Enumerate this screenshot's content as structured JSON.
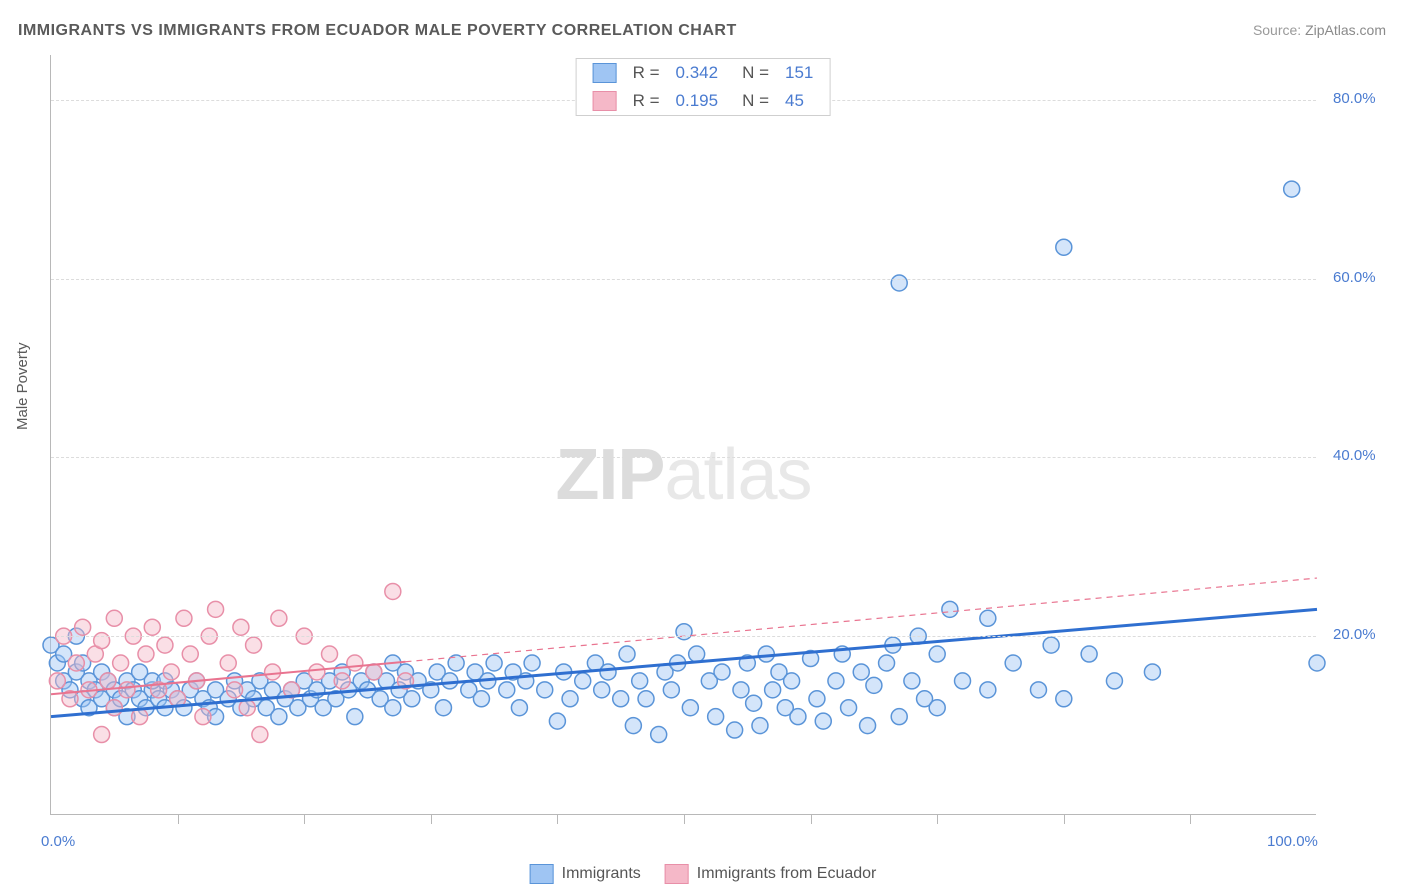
{
  "title": "IMMIGRANTS VS IMMIGRANTS FROM ECUADOR MALE POVERTY CORRELATION CHART",
  "source_label": "Source:",
  "source_value": "ZipAtlas.com",
  "ylabel": "Male Poverty",
  "watermark_zip": "ZIP",
  "watermark_atlas": "atlas",
  "chart": {
    "type": "scatter",
    "xlim": [
      0,
      100
    ],
    "ylim": [
      0,
      85
    ],
    "x_ticks": [
      0,
      100
    ],
    "x_tick_labels": [
      "0.0%",
      "100.0%"
    ],
    "x_minor_ticks": [
      10,
      20,
      30,
      40,
      50,
      60,
      70,
      80,
      90
    ],
    "y_ticks": [
      20,
      40,
      60,
      80
    ],
    "y_tick_labels": [
      "20.0%",
      "40.0%",
      "60.0%",
      "80.0%"
    ],
    "background_color": "#ffffff",
    "grid_color": "#dcdcdc",
    "axis_color": "#b8b8b8",
    "tick_label_color": "#4a7bd0",
    "marker_radius": 8,
    "marker_stroke_width": 1.5,
    "marker_fill_opacity": 0.45,
    "series": [
      {
        "name": "Immigrants",
        "legend_label": "Immigrants",
        "color_fill": "#9fc5f3",
        "color_stroke": "#5a94d8",
        "r_value": "0.342",
        "n_value": "151",
        "trend": {
          "x1": 0,
          "y1": 11,
          "x2": 100,
          "y2": 23,
          "solid_until_x": 100,
          "color": "#2f6fd0",
          "width": 3
        },
        "points": [
          [
            0,
            19
          ],
          [
            0.5,
            17
          ],
          [
            1,
            15
          ],
          [
            1,
            18
          ],
          [
            1.5,
            14
          ],
          [
            2,
            16
          ],
          [
            2,
            20
          ],
          [
            2.5,
            13
          ],
          [
            2.5,
            17
          ],
          [
            3,
            15
          ],
          [
            3,
            12
          ],
          [
            3.5,
            14
          ],
          [
            4,
            16
          ],
          [
            4,
            13
          ],
          [
            4.5,
            15
          ],
          [
            5,
            14
          ],
          [
            5,
            12
          ],
          [
            5.5,
            13
          ],
          [
            6,
            15
          ],
          [
            6,
            11
          ],
          [
            6.5,
            14
          ],
          [
            7,
            13
          ],
          [
            7,
            16
          ],
          [
            7.5,
            12
          ],
          [
            8,
            14
          ],
          [
            8,
            15
          ],
          [
            8.5,
            13
          ],
          [
            9,
            12
          ],
          [
            9,
            15
          ],
          [
            9.5,
            14
          ],
          [
            10,
            13
          ],
          [
            10.5,
            12
          ],
          [
            11,
            14
          ],
          [
            11.5,
            15
          ],
          [
            12,
            13
          ],
          [
            12.5,
            12
          ],
          [
            13,
            14
          ],
          [
            13,
            11
          ],
          [
            14,
            13
          ],
          [
            14.5,
            15
          ],
          [
            15,
            12
          ],
          [
            15.5,
            14
          ],
          [
            16,
            13
          ],
          [
            16.5,
            15
          ],
          [
            17,
            12
          ],
          [
            17.5,
            14
          ],
          [
            18,
            11
          ],
          [
            18.5,
            13
          ],
          [
            19,
            14
          ],
          [
            19.5,
            12
          ],
          [
            20,
            15
          ],
          [
            20.5,
            13
          ],
          [
            21,
            14
          ],
          [
            21.5,
            12
          ],
          [
            22,
            15
          ],
          [
            22.5,
            13
          ],
          [
            23,
            16
          ],
          [
            23.5,
            14
          ],
          [
            24,
            11
          ],
          [
            24.5,
            15
          ],
          [
            25,
            14
          ],
          [
            25.5,
            16
          ],
          [
            26,
            13
          ],
          [
            26.5,
            15
          ],
          [
            27,
            17
          ],
          [
            27,
            12
          ],
          [
            27.5,
            14
          ],
          [
            28,
            16
          ],
          [
            28.5,
            13
          ],
          [
            29,
            15
          ],
          [
            30,
            14
          ],
          [
            30.5,
            16
          ],
          [
            31,
            12
          ],
          [
            31.5,
            15
          ],
          [
            32,
            17
          ],
          [
            33,
            14
          ],
          [
            33.5,
            16
          ],
          [
            34,
            13
          ],
          [
            34.5,
            15
          ],
          [
            35,
            17
          ],
          [
            36,
            14
          ],
          [
            36.5,
            16
          ],
          [
            37,
            12
          ],
          [
            37.5,
            15
          ],
          [
            38,
            17
          ],
          [
            39,
            14
          ],
          [
            40,
            10.5
          ],
          [
            40.5,
            16
          ],
          [
            41,
            13
          ],
          [
            42,
            15
          ],
          [
            43,
            17
          ],
          [
            43.5,
            14
          ],
          [
            44,
            16
          ],
          [
            45,
            13
          ],
          [
            45.5,
            18
          ],
          [
            46,
            10
          ],
          [
            46.5,
            15
          ],
          [
            47,
            13
          ],
          [
            48,
            9
          ],
          [
            48.5,
            16
          ],
          [
            49,
            14
          ],
          [
            49.5,
            17
          ],
          [
            50,
            20.5
          ],
          [
            50.5,
            12
          ],
          [
            51,
            18
          ],
          [
            52,
            15
          ],
          [
            52.5,
            11
          ],
          [
            53,
            16
          ],
          [
            54,
            9.5
          ],
          [
            54.5,
            14
          ],
          [
            55,
            17
          ],
          [
            55.5,
            12.5
          ],
          [
            56,
            10
          ],
          [
            56.5,
            18
          ],
          [
            57,
            14
          ],
          [
            57.5,
            16
          ],
          [
            58,
            12
          ],
          [
            58.5,
            15
          ],
          [
            59,
            11
          ],
          [
            60,
            17.5
          ],
          [
            60.5,
            13
          ],
          [
            61,
            10.5
          ],
          [
            62,
            15
          ],
          [
            62.5,
            18
          ],
          [
            63,
            12
          ],
          [
            64,
            16
          ],
          [
            64.5,
            10
          ],
          [
            65,
            14.5
          ],
          [
            66,
            17
          ],
          [
            66.5,
            19
          ],
          [
            67,
            11
          ],
          [
            68,
            15
          ],
          [
            68.5,
            20
          ],
          [
            69,
            13
          ],
          [
            70,
            12
          ],
          [
            70,
            18
          ],
          [
            71,
            23
          ],
          [
            72,
            15
          ],
          [
            74,
            14
          ],
          [
            74,
            22
          ],
          [
            76,
            17
          ],
          [
            78,
            14
          ],
          [
            79,
            19
          ],
          [
            80,
            13
          ],
          [
            82,
            18
          ],
          [
            84,
            15
          ],
          [
            87,
            16
          ],
          [
            67,
            59.5
          ],
          [
            80,
            63.5
          ],
          [
            98,
            70
          ],
          [
            100,
            17
          ]
        ]
      },
      {
        "name": "Immigrants from Ecuador",
        "legend_label": "Immigrants from Ecuador",
        "color_fill": "#f5b8c8",
        "color_stroke": "#e88fa8",
        "r_value": "0.195",
        "n_value": "45",
        "trend": {
          "x1": 0,
          "y1": 13.5,
          "x2": 100,
          "y2": 26.5,
          "solid_until_x": 28,
          "color": "#e97490",
          "width": 2
        },
        "points": [
          [
            0.5,
            15
          ],
          [
            1,
            20
          ],
          [
            1.5,
            13
          ],
          [
            2,
            17
          ],
          [
            2.5,
            21
          ],
          [
            3,
            14
          ],
          [
            3.5,
            18
          ],
          [
            4,
            9
          ],
          [
            4,
            19.5
          ],
          [
            4.5,
            15
          ],
          [
            5,
            22
          ],
          [
            5,
            12
          ],
          [
            5.5,
            17
          ],
          [
            6,
            14
          ],
          [
            6.5,
            20
          ],
          [
            7,
            11
          ],
          [
            7.5,
            18
          ],
          [
            8,
            21
          ],
          [
            8.5,
            14
          ],
          [
            9,
            19
          ],
          [
            9.5,
            16
          ],
          [
            10,
            13
          ],
          [
            10.5,
            22
          ],
          [
            11,
            18
          ],
          [
            11.5,
            15
          ],
          [
            12,
            11
          ],
          [
            12.5,
            20
          ],
          [
            13,
            23
          ],
          [
            14,
            17
          ],
          [
            14.5,
            14
          ],
          [
            15,
            21
          ],
          [
            15.5,
            12
          ],
          [
            16,
            19
          ],
          [
            16.5,
            9
          ],
          [
            17.5,
            16
          ],
          [
            18,
            22
          ],
          [
            19,
            14
          ],
          [
            20,
            20
          ],
          [
            21,
            16
          ],
          [
            22,
            18
          ],
          [
            23,
            15
          ],
          [
            24,
            17
          ],
          [
            25.5,
            16
          ],
          [
            27,
            25
          ],
          [
            28,
            15
          ]
        ]
      }
    ]
  },
  "legend_r_label": "R =",
  "legend_n_label": "N ="
}
